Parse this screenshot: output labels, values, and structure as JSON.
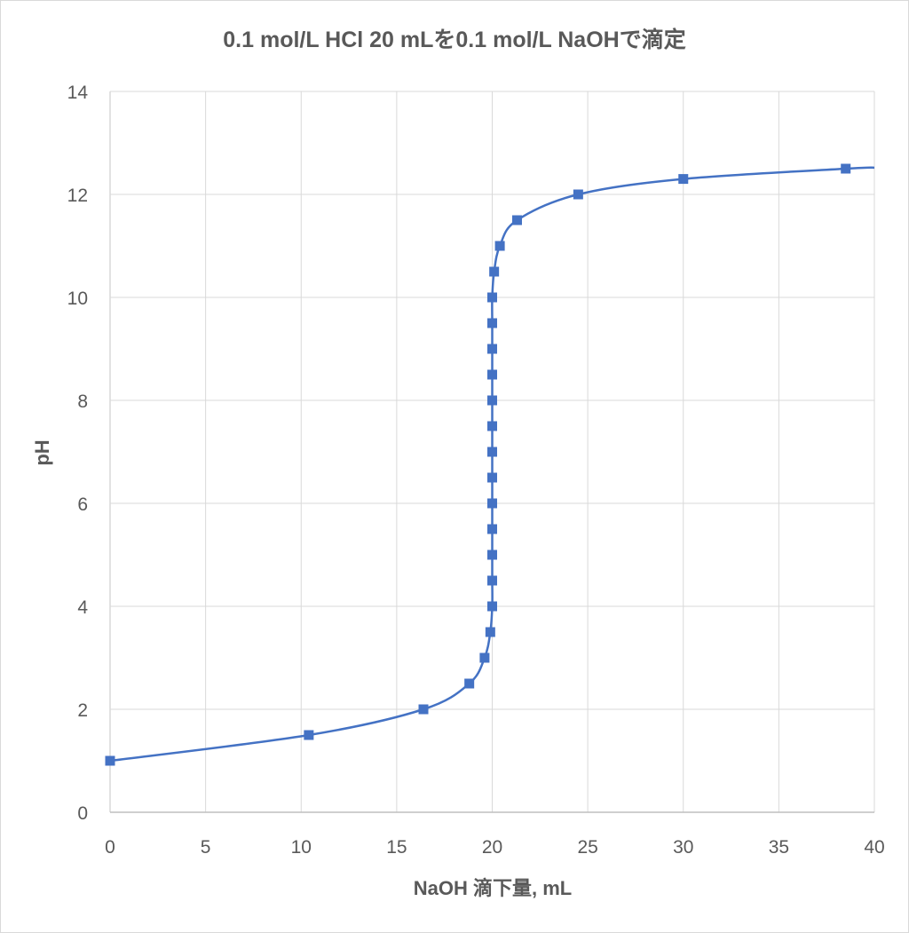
{
  "chart_data": {
    "type": "scatter",
    "title": "0.1 mol/L HCl 20 mLを0.1 mol/L NaOHで滴定",
    "xlabel": "NaOH 滴下量, mL",
    "ylabel": "pH",
    "xlim": [
      0,
      40
    ],
    "ylim": [
      0,
      14
    ],
    "xticks": [
      "0",
      "5",
      "10",
      "15",
      "20",
      "25",
      "30",
      "35",
      "40"
    ],
    "yticks": [
      "0",
      "2",
      "4",
      "6",
      "8",
      "10",
      "12",
      "14"
    ],
    "grid": true,
    "smooth_line": true,
    "series": [
      {
        "color": "#4472c4",
        "marker": "square",
        "points": [
          [
            0,
            1.0
          ],
          [
            10.4,
            1.5
          ],
          [
            16.4,
            2.0
          ],
          [
            18.8,
            2.5
          ],
          [
            19.6,
            3.0
          ],
          [
            19.9,
            3.5
          ],
          [
            20.0,
            4.0
          ],
          [
            20.0,
            4.5
          ],
          [
            20.0,
            5.0
          ],
          [
            20.0,
            5.5
          ],
          [
            20.0,
            6.0
          ],
          [
            20.0,
            6.5
          ],
          [
            20.0,
            7.0
          ],
          [
            20.0,
            7.5
          ],
          [
            20.0,
            8.0
          ],
          [
            20.0,
            8.5
          ],
          [
            20.0,
            9.0
          ],
          [
            20.0,
            9.5
          ],
          [
            20.0,
            10.0
          ],
          [
            20.1,
            10.5
          ],
          [
            20.4,
            11.0
          ],
          [
            21.3,
            11.5
          ],
          [
            24.5,
            12.0
          ],
          [
            30.0,
            12.3
          ],
          [
            38.5,
            12.5
          ]
        ],
        "line_end": [
          40,
          12.52
        ]
      }
    ]
  }
}
